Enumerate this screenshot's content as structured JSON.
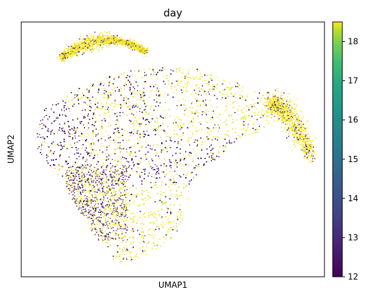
{
  "chart_data": {
    "type": "scatter",
    "title": "day",
    "xlabel": "UMAP1",
    "ylabel": "UMAP2",
    "color_variable": "day",
    "colormap": "viridis",
    "colorbar": {
      "min": 12,
      "max": 18.5,
      "ticks": [
        "12",
        "13",
        "14",
        "15",
        "16",
        "17",
        "18"
      ]
    },
    "x_ticks": false,
    "y_ticks": false,
    "grid": false,
    "clusters": [
      {
        "region": "upper-left band",
        "dominant_values": [
          17,
          18
        ]
      },
      {
        "region": "main body left",
        "dominant_values": [
          12,
          13
        ]
      },
      {
        "region": "main body center diagonal",
        "dominant_values": [
          12,
          13,
          18
        ]
      },
      {
        "region": "main body upper right",
        "dominant_values": [
          18
        ]
      },
      {
        "region": "right arm",
        "dominant_values": [
          17,
          18
        ]
      },
      {
        "region": "lower lobe",
        "dominant_values": [
          18
        ]
      }
    ]
  }
}
